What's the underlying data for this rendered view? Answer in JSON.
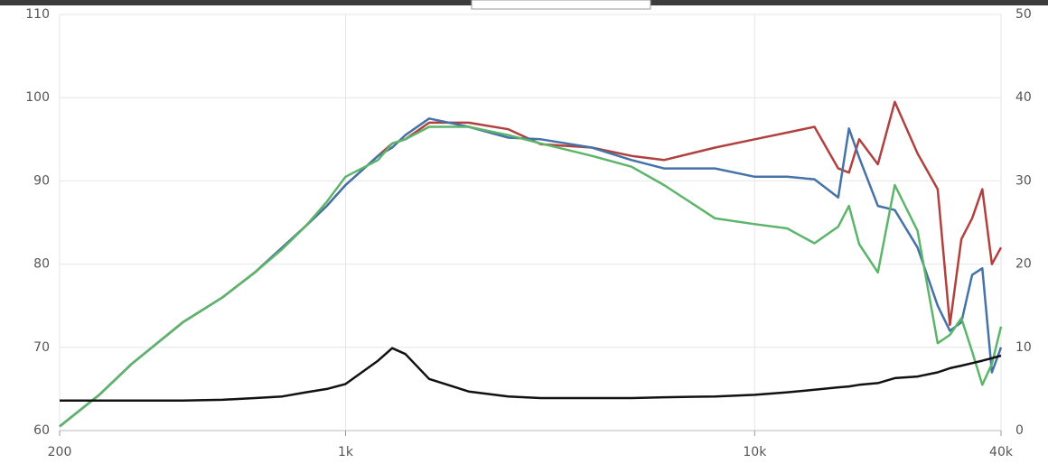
{
  "chart_data": {
    "type": "line",
    "xscale": "log",
    "grid": true,
    "x": [
      200,
      250,
      300,
      400,
      500,
      600,
      700,
      800,
      900,
      1000,
      1200,
      1300,
      1400,
      1600,
      2000,
      2500,
      3000,
      4000,
      5000,
      6000,
      8000,
      10000,
      12000,
      14000,
      16000,
      17000,
      18000,
      20000,
      22000,
      25000,
      28000,
      30000,
      32000,
      34000,
      36000,
      38000,
      40000
    ],
    "xlim": [
      200,
      40000
    ],
    "xticks": [
      200,
      {
        "value": 1000,
        "label": "1k"
      },
      {
        "value": 10000,
        "label": "10k"
      },
      {
        "value": 40000,
        "label": "40k"
      }
    ],
    "ylim": [
      60,
      110
    ],
    "yticks": [
      60,
      70,
      80,
      90,
      100,
      110
    ],
    "y2lim": [
      0,
      50
    ],
    "y2ticks": [
      0,
      10,
      20,
      30,
      40,
      50
    ],
    "series": [
      {
        "color": "#b0413e",
        "values": [
          60.5,
          64.3,
          68,
          73,
          76,
          79,
          82,
          84.6,
          87,
          89.5,
          93,
          94.5,
          95,
          97,
          97,
          96.2,
          94.4,
          94,
          93,
          92.5,
          94,
          95,
          95.8,
          96.5,
          91.5,
          91,
          95,
          92,
          99.5,
          93.3,
          89,
          72.7,
          83,
          85.5,
          89,
          80,
          82
        ]
      },
      {
        "color": "#4572a7",
        "values": [
          60.5,
          64.3,
          68,
          73,
          76,
          79,
          82,
          84.6,
          87,
          89.5,
          93,
          94,
          95.5,
          97.5,
          96.5,
          95.2,
          95,
          94,
          92.5,
          91.5,
          91.5,
          90.5,
          90.5,
          90.2,
          88,
          96.3,
          92.8,
          87,
          86.5,
          82,
          75,
          72,
          73,
          78.7,
          79.5,
          67,
          70
        ]
      },
      {
        "color": "#5cb56a",
        "values": [
          60.5,
          64.3,
          68,
          73,
          76,
          79,
          81.8,
          84.6,
          87.5,
          90.5,
          92.5,
          94.5,
          95,
          96.5,
          96.5,
          95.5,
          94.5,
          93,
          91.7,
          89.5,
          85.5,
          84.8,
          84.3,
          82.5,
          84.5,
          87,
          82.4,
          79,
          89.5,
          84,
          70.5,
          71.5,
          73.5,
          69.5,
          65.5,
          68,
          72.5
        ]
      },
      {
        "color": "#111111",
        "axis": "y2",
        "values": [
          3.6,
          3.6,
          3.6,
          3.6,
          3.7,
          3.9,
          4.1,
          4.6,
          5,
          5.6,
          8.4,
          9.9,
          9.2,
          6.2,
          4.7,
          4.1,
          3.9,
          3.9,
          3.9,
          4,
          4.1,
          4.3,
          4.6,
          4.9,
          5.2,
          5.3,
          5.5,
          5.7,
          6.3,
          6.5,
          7,
          7.5,
          7.8,
          8.1,
          8.4,
          8.7,
          9
        ]
      }
    ]
  }
}
